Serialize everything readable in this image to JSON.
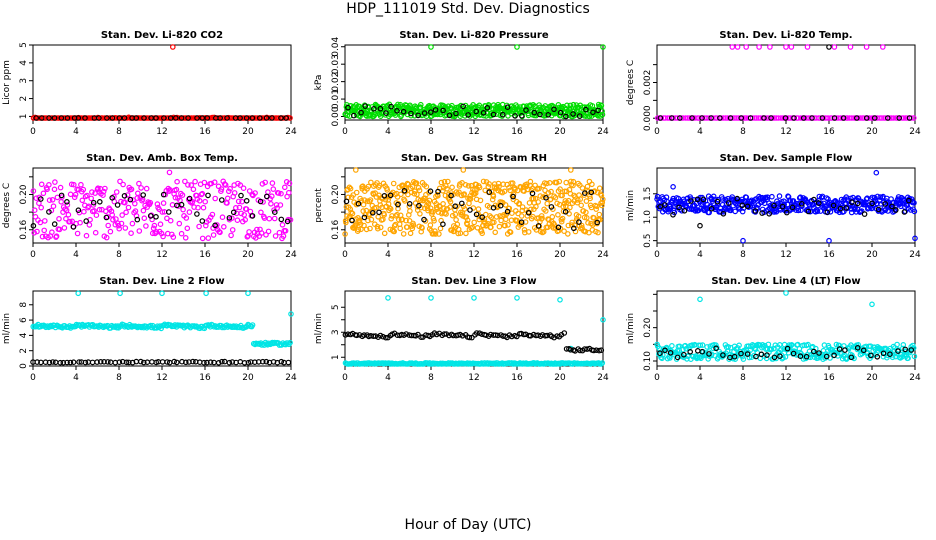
{
  "page": {
    "title": "HDP_111019  Std. Dev. Diagnostics",
    "xlabel": "Hour of Day (UTC)"
  },
  "colors": {
    "black": "#000000",
    "red": "#ff0000",
    "green": "#00dd00",
    "magenta": "#ff00ff",
    "orange": "#ffa500",
    "blue": "#0000ff",
    "cyan": "#00e5e5"
  },
  "chart_data": [
    {
      "type": "scatter",
      "title": "Stan. Dev. Li-820 CO2",
      "ylabel": "Licor ppm",
      "xlim": [
        0,
        24
      ],
      "ylim": [
        0.8,
        5.0
      ],
      "xticks": [
        0,
        4,
        8,
        12,
        16,
        20,
        24
      ],
      "yticks": [
        1,
        2,
        3,
        4,
        5
      ],
      "ytick_labels": [
        "1",
        "2",
        "3",
        "4",
        "5"
      ],
      "series": [
        {
          "color": "red",
          "band": [
            0.55,
            0.95
          ],
          "n": 160,
          "outliers": [
            [
              13.0,
              4.9
            ]
          ]
        },
        {
          "color": "black",
          "band": [
            0.6,
            0.85
          ],
          "n": 40
        }
      ]
    },
    {
      "type": "scatter",
      "title": "Stan. Dev. Li-820 Pressure",
      "ylabel": "kPa",
      "xlim": [
        0,
        24
      ],
      "ylim": [
        -0.002,
        0.041
      ],
      "xticks": [
        0,
        4,
        8,
        12,
        16,
        20,
        24
      ],
      "yticks": [
        0.0,
        0.01,
        0.02,
        0.03,
        0.04
      ],
      "ytick_labels": [
        "0.00",
        "0.01",
        "0.02",
        "0.03",
        "0.04"
      ],
      "series": [
        {
          "color": "green",
          "band": [
            0.0,
            0.007
          ],
          "n": 450,
          "outliers": [
            [
              8.0,
              0.04
            ],
            [
              16.0,
              0.04
            ],
            [
              24.0,
              0.04
            ]
          ]
        },
        {
          "color": "black",
          "band": [
            0.0,
            0.006
          ],
          "n": 40
        }
      ]
    },
    {
      "type": "scatter",
      "title": "Stan. Dev. Li-820 Temp.",
      "ylabel": "degrees C",
      "xlim": [
        0,
        24
      ],
      "ylim": [
        -0.0001,
        0.0041
      ],
      "xticks": [
        0,
        4,
        8,
        12,
        16,
        20,
        24
      ],
      "yticks": [
        0.0,
        0.001,
        0.002,
        0.003
      ],
      "ytick_labels": [
        "0.000",
        "",
        "0.002",
        ""
      ],
      "series": [
        {
          "color": "magenta",
          "band": [
            0.0,
            0.0
          ],
          "n": 130,
          "outliers": [
            [
              7.0,
              0.004
            ],
            [
              7.5,
              0.004
            ],
            [
              8.3,
              0.004
            ],
            [
              9.5,
              0.004
            ],
            [
              10.5,
              0.004
            ],
            [
              12.0,
              0.004
            ],
            [
              12.5,
              0.004
            ],
            [
              14.0,
              0.004
            ],
            [
              16.5,
              0.004
            ],
            [
              18.0,
              0.004
            ],
            [
              19.5,
              0.004
            ],
            [
              21.0,
              0.004
            ]
          ]
        },
        {
          "color": "black",
          "band": [
            0.0,
            0.0
          ],
          "n": 25,
          "outliers": [
            [
              16.0,
              0.004
            ]
          ]
        }
      ]
    },
    {
      "type": "scatter",
      "title": "Stan. Dev. Amb. Box Temp.",
      "ylabel": "degrees C",
      "xlim": [
        0,
        24
      ],
      "ylim": [
        0.145,
        0.23
      ],
      "xticks": [
        0,
        4,
        8,
        12,
        16,
        20,
        24
      ],
      "yticks": [
        0.16,
        0.18,
        0.2,
        0.22
      ],
      "ytick_labels": [
        "0.16",
        "",
        "0.20",
        ""
      ],
      "series": [
        {
          "color": "magenta",
          "band": [
            0.15,
            0.215
          ],
          "n": 330,
          "outliers": [
            [
              12.7,
              0.225
            ]
          ]
        },
        {
          "color": "black",
          "band": [
            0.16,
            0.2
          ],
          "n": 40
        }
      ]
    },
    {
      "type": "scatter",
      "title": "Stan. Dev. Gas Stream RH",
      "ylabel": "percent",
      "xlim": [
        0,
        24
      ],
      "ylim": [
        0.145,
        0.23
      ],
      "xticks": [
        0,
        4,
        8,
        12,
        16,
        20,
        24
      ],
      "yticks": [
        0.16,
        0.18,
        0.2,
        0.22
      ],
      "ytick_labels": [
        "0.16",
        "",
        "0.20",
        ""
      ],
      "series": [
        {
          "color": "orange",
          "band": [
            0.155,
            0.215
          ],
          "n": 600,
          "outliers": [
            [
              1.0,
              0.228
            ],
            [
              11.0,
              0.229
            ],
            [
              21.0,
              0.229
            ]
          ]
        },
        {
          "color": "black",
          "band": [
            0.16,
            0.205
          ],
          "n": 40
        }
      ]
    },
    {
      "type": "scatter",
      "title": "Stan. Dev. Sample Flow",
      "ylabel": "ml/min",
      "xlim": [
        0,
        24
      ],
      "ylim": [
        0.45,
        2.05
      ],
      "xticks": [
        0,
        4,
        8,
        12,
        16,
        20,
        24
      ],
      "yticks": [
        0.5,
        1.0,
        1.5
      ],
      "ytick_labels": [
        "0.5",
        "1.0",
        "1.5"
      ],
      "series": [
        {
          "color": "blue",
          "band": [
            1.1,
            1.45
          ],
          "n": 420,
          "outliers": [
            [
              8.0,
              0.5
            ],
            [
              16.0,
              0.5
            ],
            [
              20.4,
              1.95
            ],
            [
              24.0,
              0.55
            ],
            [
              1.5,
              1.65
            ]
          ]
        },
        {
          "color": "black",
          "band": [
            1.05,
            1.4
          ],
          "n": 40,
          "outliers": [
            [
              4.0,
              0.82
            ]
          ]
        }
      ]
    },
    {
      "type": "scatter",
      "title": "Stan. Dev. Line 2 Flow",
      "ylabel": "ml/min",
      "xlim": [
        0,
        24
      ],
      "ylim": [
        0,
        9.8
      ],
      "xticks": [
        0,
        4,
        8,
        12,
        16,
        20,
        24
      ],
      "yticks": [
        0,
        2,
        4,
        6,
        8
      ],
      "ytick_labels": [
        "0",
        "2",
        "4",
        "6",
        "8"
      ],
      "series": [
        {
          "color": "cyan",
          "trend": "line2",
          "n": 220,
          "outliers": [
            [
              4.2,
              9.5
            ],
            [
              8.1,
              9.5
            ],
            [
              12.0,
              9.5
            ],
            [
              16.1,
              9.5
            ],
            [
              20.0,
              9.5
            ],
            [
              24.0,
              6.8
            ]
          ]
        },
        {
          "color": "black",
          "band": [
            0.42,
            0.58
          ],
          "n": 70
        }
      ]
    },
    {
      "type": "scatter",
      "title": "Stan. Dev. Line 3 Flow",
      "ylabel": "ml/min",
      "xlim": [
        0,
        24
      ],
      "ylim": [
        0.3,
        6.3
      ],
      "xticks": [
        0,
        4,
        8,
        12,
        16,
        20,
        24
      ],
      "yticks": [
        1,
        2,
        3,
        4,
        5
      ],
      "ytick_labels": [
        "1",
        "",
        "3",
        "",
        "5"
      ],
      "series": [
        {
          "color": "cyan",
          "band": [
            0.45,
            0.55
          ],
          "n": 220,
          "outliers": [
            [
              4.0,
              5.75
            ],
            [
              8.0,
              5.75
            ],
            [
              12.0,
              5.75
            ],
            [
              16.0,
              5.75
            ],
            [
              20.0,
              5.6
            ],
            [
              24.0,
              4.0
            ],
            [
              21.0,
              1.7
            ]
          ]
        },
        {
          "color": "black",
          "trend": "line3",
          "n": 110
        }
      ]
    },
    {
      "type": "scatter",
      "title": "Stan. Dev. Line 4 (LT) Flow",
      "ylabel": "ml/min",
      "xlim": [
        0,
        24
      ],
      "ylim": [
        0.085,
        0.31
      ],
      "xticks": [
        0,
        4,
        8,
        12,
        16,
        20,
        24
      ],
      "yticks": [
        0.1,
        0.15,
        0.2,
        0.25,
        0.3
      ],
      "ytick_labels": [
        "0.10",
        "",
        "0.20",
        "",
        ""
      ],
      "series": [
        {
          "color": "cyan",
          "band": [
            0.105,
            0.15
          ],
          "n": 330,
          "outliers": [
            [
              4.0,
              0.285
            ],
            [
              12.0,
              0.305
            ],
            [
              20.0,
              0.27
            ]
          ]
        },
        {
          "color": "black",
          "band": [
            0.11,
            0.14
          ],
          "n": 40
        }
      ]
    }
  ]
}
